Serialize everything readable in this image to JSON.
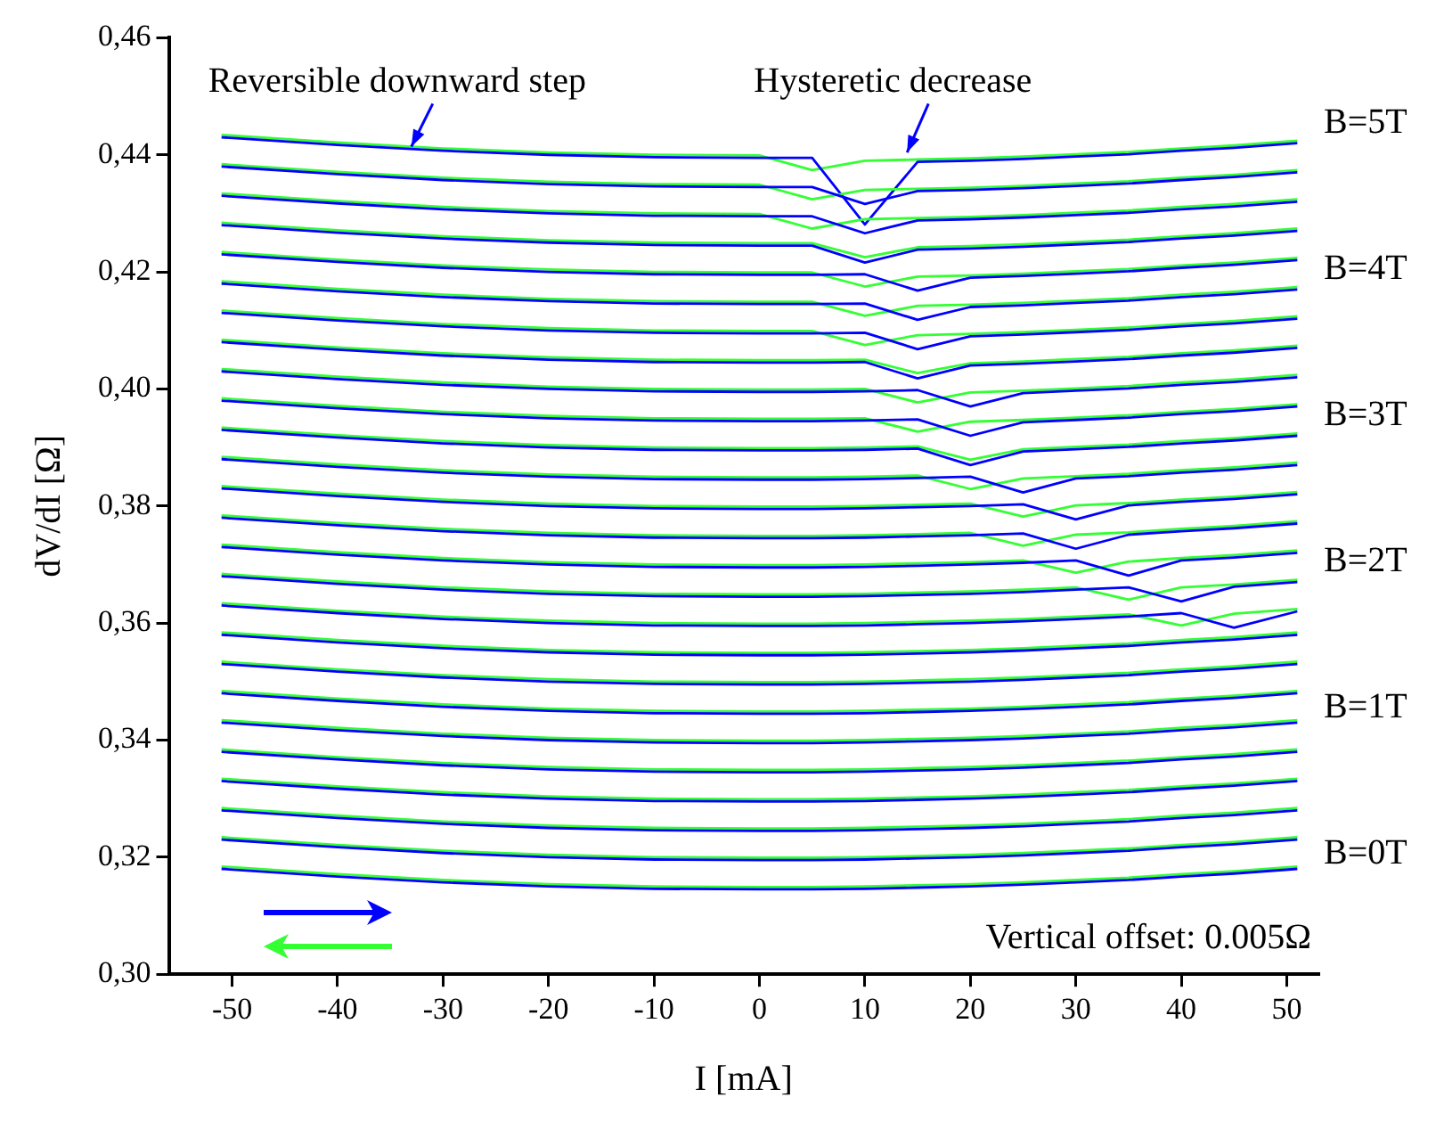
{
  "chart_data": {
    "type": "line",
    "xlabel": "I [mA]",
    "ylabel": "dV/dI [Ω]",
    "x": [
      -51,
      -40,
      -30,
      -20,
      -10,
      0,
      5,
      10,
      15,
      20,
      25,
      30,
      35,
      40,
      45,
      51
    ],
    "xlim": [
      -56,
      53
    ],
    "xticks": [
      -50,
      -40,
      -30,
      -20,
      -10,
      0,
      10,
      20,
      30,
      40,
      50
    ],
    "ylim": [
      0.3,
      0.46
    ],
    "yticks": [
      {
        "value": 0.3,
        "label": "0,30"
      },
      {
        "value": 0.32,
        "label": "0,32"
      },
      {
        "value": 0.34,
        "label": "0,34"
      },
      {
        "value": 0.36,
        "label": "0,36"
      },
      {
        "value": 0.38,
        "label": "0,38"
      },
      {
        "value": 0.4,
        "label": "0,40"
      },
      {
        "value": 0.42,
        "label": "0,42"
      },
      {
        "value": 0.44,
        "label": "0,44"
      },
      {
        "value": 0.46,
        "label": "0,46"
      }
    ],
    "grid": false,
    "legend": false,
    "marker": "none",
    "line_style": "solid",
    "annotations": [
      {
        "text": "Reversible downward step",
        "x": -33,
        "y": 0.4405
      },
      {
        "text": "Hysteretic decrease",
        "x": 14,
        "y": 0.4395
      },
      {
        "text": "B=5T",
        "x": 51,
        "y": 0.443
      },
      {
        "text": "B=4T",
        "x": 51,
        "y": 0.418
      },
      {
        "text": "B=3T",
        "x": 51,
        "y": 0.393
      },
      {
        "text": "B=2T",
        "x": 51,
        "y": 0.368
      },
      {
        "text": "B=1T",
        "x": 51,
        "y": 0.343
      },
      {
        "text": "B=0T",
        "x": 51,
        "y": 0.318
      },
      "Vertical offset: 0.005Ω"
    ],
    "series": [
      {
        "color": "#0000ff",
        "values": [
          0.318,
          0.3167,
          0.3157,
          0.315,
          0.3146,
          0.3145,
          0.3145,
          0.3146,
          0.3148,
          0.315,
          0.3153,
          0.3157,
          0.3161,
          0.3167,
          0.3172,
          0.318
        ]
      },
      {
        "color": "#33ff33",
        "values": [
          0.3184,
          0.3171,
          0.3161,
          0.3154,
          0.315,
          0.3149,
          0.3149,
          0.315,
          0.3152,
          0.3154,
          0.3157,
          0.3161,
          0.3165,
          0.3171,
          0.3176,
          0.3184
        ]
      },
      {
        "color": "#0000ff",
        "values": [
          0.323,
          0.3217,
          0.3207,
          0.32,
          0.3196,
          0.3195,
          0.3195,
          0.3196,
          0.3198,
          0.32,
          0.3203,
          0.3207,
          0.3211,
          0.3217,
          0.3222,
          0.323
        ]
      },
      {
        "color": "#33ff33",
        "values": [
          0.3234,
          0.3221,
          0.3211,
          0.3204,
          0.32,
          0.3199,
          0.3199,
          0.32,
          0.3202,
          0.3204,
          0.3207,
          0.3211,
          0.3215,
          0.3221,
          0.3226,
          0.3234
        ]
      },
      {
        "color": "#0000ff",
        "values": [
          0.328,
          0.3267,
          0.3257,
          0.325,
          0.3246,
          0.3245,
          0.3245,
          0.3246,
          0.3248,
          0.325,
          0.3253,
          0.3257,
          0.3261,
          0.3267,
          0.3272,
          0.328
        ]
      },
      {
        "color": "#33ff33",
        "values": [
          0.3284,
          0.3271,
          0.3261,
          0.3254,
          0.325,
          0.3249,
          0.3249,
          0.325,
          0.3252,
          0.3254,
          0.3257,
          0.3261,
          0.3265,
          0.3271,
          0.3276,
          0.3284
        ]
      },
      {
        "color": "#0000ff",
        "values": [
          0.333,
          0.3317,
          0.3307,
          0.33,
          0.3296,
          0.3295,
          0.3295,
          0.3296,
          0.3298,
          0.33,
          0.3303,
          0.3307,
          0.3311,
          0.3317,
          0.3322,
          0.333
        ]
      },
      {
        "color": "#33ff33",
        "values": [
          0.3334,
          0.3321,
          0.3311,
          0.3304,
          0.33,
          0.3299,
          0.3299,
          0.33,
          0.3302,
          0.3304,
          0.3307,
          0.3311,
          0.3315,
          0.3321,
          0.3326,
          0.3334
        ]
      },
      {
        "color": "#0000ff",
        "values": [
          0.338,
          0.3367,
          0.3357,
          0.335,
          0.3346,
          0.3345,
          0.3345,
          0.3346,
          0.3348,
          0.335,
          0.3353,
          0.3357,
          0.3361,
          0.3367,
          0.3372,
          0.338
        ]
      },
      {
        "color": "#33ff33",
        "values": [
          0.3384,
          0.3371,
          0.3361,
          0.3354,
          0.335,
          0.3349,
          0.3349,
          0.335,
          0.3352,
          0.3354,
          0.3357,
          0.3361,
          0.3365,
          0.3371,
          0.3376,
          0.3384
        ]
      },
      {
        "color": "#0000ff",
        "values": [
          0.343,
          0.3417,
          0.3407,
          0.34,
          0.3396,
          0.3395,
          0.3395,
          0.3396,
          0.3398,
          0.34,
          0.3403,
          0.3407,
          0.3411,
          0.3417,
          0.3422,
          0.343
        ]
      },
      {
        "color": "#33ff33",
        "values": [
          0.3434,
          0.3421,
          0.3411,
          0.3404,
          0.34,
          0.3399,
          0.3399,
          0.34,
          0.3402,
          0.3404,
          0.3407,
          0.3411,
          0.3415,
          0.3421,
          0.3426,
          0.3434
        ]
      },
      {
        "color": "#0000ff",
        "values": [
          0.348,
          0.3467,
          0.3457,
          0.345,
          0.3446,
          0.3445,
          0.3445,
          0.3446,
          0.3448,
          0.345,
          0.3453,
          0.3457,
          0.3461,
          0.3467,
          0.3472,
          0.348
        ]
      },
      {
        "color": "#33ff33",
        "values": [
          0.3484,
          0.3471,
          0.3461,
          0.3454,
          0.345,
          0.3449,
          0.3449,
          0.345,
          0.3452,
          0.3454,
          0.3457,
          0.3461,
          0.3465,
          0.3471,
          0.3476,
          0.3484
        ]
      },
      {
        "color": "#0000ff",
        "values": [
          0.353,
          0.3517,
          0.3507,
          0.35,
          0.3496,
          0.3495,
          0.3495,
          0.3496,
          0.3498,
          0.35,
          0.3503,
          0.3507,
          0.3511,
          0.3517,
          0.3522,
          0.353
        ]
      },
      {
        "color": "#33ff33",
        "values": [
          0.3534,
          0.3521,
          0.3511,
          0.3504,
          0.35,
          0.3499,
          0.3499,
          0.35,
          0.3502,
          0.3504,
          0.3507,
          0.3511,
          0.3515,
          0.3521,
          0.3526,
          0.3534
        ]
      },
      {
        "color": "#0000ff",
        "values": [
          0.358,
          0.3567,
          0.3557,
          0.355,
          0.3546,
          0.3545,
          0.3545,
          0.3546,
          0.3548,
          0.355,
          0.3553,
          0.3557,
          0.3561,
          0.3567,
          0.3572,
          0.358
        ]
      },
      {
        "color": "#33ff33",
        "values": [
          0.3584,
          0.3571,
          0.3561,
          0.3554,
          0.355,
          0.3549,
          0.3549,
          0.355,
          0.3552,
          0.3554,
          0.3557,
          0.3561,
          0.3565,
          0.3571,
          0.3576,
          0.3584
        ]
      },
      {
        "color": "#0000ff",
        "values": [
          0.363,
          0.3617,
          0.3607,
          0.36,
          0.3596,
          0.3595,
          0.3595,
          0.3596,
          0.3598,
          0.36,
          0.3603,
          0.3607,
          0.3611,
          0.3617,
          0.3592,
          0.362
        ]
      },
      {
        "color": "#33ff33",
        "values": [
          0.3634,
          0.3621,
          0.3611,
          0.3604,
          0.36,
          0.3599,
          0.3599,
          0.36,
          0.3602,
          0.3604,
          0.3607,
          0.3611,
          0.3615,
          0.3596,
          0.3616,
          0.3624
        ]
      },
      {
        "color": "#0000ff",
        "values": [
          0.368,
          0.3667,
          0.3657,
          0.365,
          0.3646,
          0.3645,
          0.3645,
          0.3646,
          0.3648,
          0.365,
          0.3653,
          0.3657,
          0.3661,
          0.3637,
          0.3662,
          0.367
        ]
      },
      {
        "color": "#33ff33",
        "values": [
          0.3684,
          0.3671,
          0.3661,
          0.3654,
          0.365,
          0.3649,
          0.3649,
          0.365,
          0.3652,
          0.3654,
          0.3657,
          0.3661,
          0.364,
          0.3661,
          0.3666,
          0.3674
        ]
      },
      {
        "color": "#0000ff",
        "values": [
          0.373,
          0.3717,
          0.3707,
          0.37,
          0.3696,
          0.3695,
          0.3695,
          0.3696,
          0.3698,
          0.37,
          0.3703,
          0.3707,
          0.3681,
          0.3707,
          0.3712,
          0.372
        ]
      },
      {
        "color": "#33ff33",
        "values": [
          0.3734,
          0.3721,
          0.3711,
          0.3704,
          0.37,
          0.3699,
          0.3699,
          0.37,
          0.3702,
          0.3704,
          0.3707,
          0.3686,
          0.3705,
          0.3711,
          0.3716,
          0.3724
        ]
      },
      {
        "color": "#0000ff",
        "values": [
          0.378,
          0.3767,
          0.3757,
          0.375,
          0.3746,
          0.3745,
          0.3745,
          0.3746,
          0.3748,
          0.375,
          0.3753,
          0.3727,
          0.3751,
          0.3757,
          0.3762,
          0.377
        ]
      },
      {
        "color": "#33ff33",
        "values": [
          0.3784,
          0.3771,
          0.3761,
          0.3754,
          0.375,
          0.3749,
          0.3749,
          0.375,
          0.3752,
          0.3754,
          0.3732,
          0.3751,
          0.3755,
          0.3761,
          0.3766,
          0.3774
        ]
      },
      {
        "color": "#0000ff",
        "values": [
          0.383,
          0.3817,
          0.3807,
          0.38,
          0.3796,
          0.3795,
          0.3795,
          0.3796,
          0.3798,
          0.38,
          0.3803,
          0.3777,
          0.3801,
          0.3807,
          0.3812,
          0.382
        ]
      },
      {
        "color": "#33ff33",
        "values": [
          0.3834,
          0.3821,
          0.3811,
          0.3804,
          0.38,
          0.3799,
          0.3799,
          0.38,
          0.3802,
          0.3804,
          0.3782,
          0.3801,
          0.3805,
          0.3811,
          0.3816,
          0.3824
        ]
      },
      {
        "color": "#0000ff",
        "values": [
          0.388,
          0.3867,
          0.3857,
          0.385,
          0.3846,
          0.3845,
          0.3845,
          0.3846,
          0.3848,
          0.385,
          0.3823,
          0.3847,
          0.3851,
          0.3857,
          0.3862,
          0.387
        ]
      },
      {
        "color": "#33ff33",
        "values": [
          0.3884,
          0.3871,
          0.3861,
          0.3854,
          0.385,
          0.3849,
          0.3849,
          0.385,
          0.3852,
          0.3829,
          0.3847,
          0.3851,
          0.3855,
          0.3861,
          0.3866,
          0.3874
        ]
      },
      {
        "color": "#0000ff",
        "values": [
          0.393,
          0.3917,
          0.3907,
          0.39,
          0.3896,
          0.3895,
          0.3895,
          0.3896,
          0.3898,
          0.387,
          0.3893,
          0.3897,
          0.3901,
          0.3907,
          0.3912,
          0.392
        ]
      },
      {
        "color": "#33ff33",
        "values": [
          0.3934,
          0.3921,
          0.3911,
          0.3904,
          0.39,
          0.3899,
          0.3899,
          0.39,
          0.3902,
          0.3879,
          0.3897,
          0.3901,
          0.3905,
          0.3911,
          0.3916,
          0.3924
        ]
      },
      {
        "color": "#0000ff",
        "values": [
          0.398,
          0.3967,
          0.3957,
          0.395,
          0.3946,
          0.3945,
          0.3945,
          0.3946,
          0.3948,
          0.392,
          0.3943,
          0.3947,
          0.3951,
          0.3957,
          0.3962,
          0.397
        ]
      },
      {
        "color": "#33ff33",
        "values": [
          0.3984,
          0.3971,
          0.3961,
          0.3954,
          0.395,
          0.3949,
          0.3949,
          0.395,
          0.3927,
          0.3944,
          0.3947,
          0.3951,
          0.3955,
          0.3961,
          0.3966,
          0.3974
        ]
      },
      {
        "color": "#0000ff",
        "values": [
          0.403,
          0.4017,
          0.4007,
          0.4,
          0.3996,
          0.3995,
          0.3995,
          0.3996,
          0.3998,
          0.397,
          0.3993,
          0.3997,
          0.4001,
          0.4007,
          0.4012,
          0.402
        ]
      },
      {
        "color": "#33ff33",
        "values": [
          0.4034,
          0.4021,
          0.4011,
          0.4004,
          0.4,
          0.3999,
          0.3999,
          0.4,
          0.3977,
          0.3994,
          0.3997,
          0.4001,
          0.4005,
          0.4011,
          0.4016,
          0.4024
        ]
      },
      {
        "color": "#0000ff",
        "values": [
          0.408,
          0.4067,
          0.4057,
          0.405,
          0.4046,
          0.4045,
          0.4045,
          0.4046,
          0.4018,
          0.404,
          0.4043,
          0.4047,
          0.4051,
          0.4057,
          0.4062,
          0.407
        ]
      },
      {
        "color": "#33ff33",
        "values": [
          0.4084,
          0.4071,
          0.4061,
          0.4054,
          0.405,
          0.4049,
          0.4049,
          0.405,
          0.4027,
          0.4044,
          0.4047,
          0.4051,
          0.4055,
          0.4061,
          0.4066,
          0.4074
        ]
      },
      {
        "color": "#0000ff",
        "values": [
          0.413,
          0.4117,
          0.4107,
          0.41,
          0.4096,
          0.4095,
          0.4095,
          0.4096,
          0.4068,
          0.409,
          0.4093,
          0.4097,
          0.4101,
          0.4107,
          0.4112,
          0.412
        ]
      },
      {
        "color": "#33ff33",
        "values": [
          0.4134,
          0.4121,
          0.4111,
          0.4104,
          0.41,
          0.4099,
          0.4099,
          0.4075,
          0.4092,
          0.4094,
          0.4097,
          0.4101,
          0.4105,
          0.4111,
          0.4116,
          0.4124
        ]
      },
      {
        "color": "#0000ff",
        "values": [
          0.418,
          0.4167,
          0.4157,
          0.415,
          0.4146,
          0.4145,
          0.4145,
          0.4146,
          0.4118,
          0.414,
          0.4143,
          0.4147,
          0.4151,
          0.4157,
          0.4162,
          0.417
        ]
      },
      {
        "color": "#33ff33",
        "values": [
          0.4184,
          0.4171,
          0.4161,
          0.4154,
          0.415,
          0.4149,
          0.4149,
          0.4125,
          0.4142,
          0.4144,
          0.4147,
          0.4151,
          0.4155,
          0.4161,
          0.4166,
          0.4174
        ]
      },
      {
        "color": "#0000ff",
        "values": [
          0.423,
          0.4217,
          0.4207,
          0.42,
          0.4196,
          0.4195,
          0.4195,
          0.4196,
          0.4168,
          0.419,
          0.4193,
          0.4197,
          0.4201,
          0.4207,
          0.4212,
          0.422
        ]
      },
      {
        "color": "#33ff33",
        "values": [
          0.4234,
          0.4221,
          0.4211,
          0.4204,
          0.42,
          0.4199,
          0.4199,
          0.4175,
          0.4192,
          0.4194,
          0.4197,
          0.4201,
          0.4205,
          0.4211,
          0.4216,
          0.4224
        ]
      },
      {
        "color": "#0000ff",
        "values": [
          0.428,
          0.4267,
          0.4257,
          0.425,
          0.4246,
          0.4245,
          0.4245,
          0.4216,
          0.4238,
          0.424,
          0.4243,
          0.4247,
          0.4251,
          0.4257,
          0.4262,
          0.427
        ]
      },
      {
        "color": "#33ff33",
        "values": [
          0.4284,
          0.4271,
          0.4261,
          0.4254,
          0.425,
          0.4249,
          0.4249,
          0.4225,
          0.4242,
          0.4244,
          0.4247,
          0.4251,
          0.4255,
          0.4261,
          0.4266,
          0.4274
        ]
      },
      {
        "color": "#0000ff",
        "values": [
          0.433,
          0.4317,
          0.4307,
          0.43,
          0.4296,
          0.4295,
          0.4295,
          0.4266,
          0.4288,
          0.429,
          0.4293,
          0.4297,
          0.4301,
          0.4307,
          0.4312,
          0.432
        ]
      },
      {
        "color": "#33ff33",
        "values": [
          0.4334,
          0.4321,
          0.4311,
          0.4304,
          0.43,
          0.4299,
          0.4274,
          0.429,
          0.4292,
          0.4294,
          0.4297,
          0.4301,
          0.4305,
          0.4311,
          0.4316,
          0.4324
        ]
      },
      {
        "color": "#0000ff",
        "values": [
          0.438,
          0.4367,
          0.4357,
          0.435,
          0.4346,
          0.4345,
          0.4345,
          0.4316,
          0.4338,
          0.434,
          0.4343,
          0.4347,
          0.4351,
          0.4357,
          0.4362,
          0.437
        ]
      },
      {
        "color": "#33ff33",
        "values": [
          0.4384,
          0.4371,
          0.4361,
          0.4354,
          0.435,
          0.4349,
          0.4324,
          0.434,
          0.4342,
          0.4344,
          0.4347,
          0.4351,
          0.4355,
          0.4361,
          0.4366,
          0.4374
        ]
      },
      {
        "color": "#0000ff",
        "values": [
          0.443,
          0.4417,
          0.4407,
          0.44,
          0.4396,
          0.4395,
          0.4395,
          0.4281,
          0.4388,
          0.439,
          0.4393,
          0.4397,
          0.4401,
          0.4407,
          0.4412,
          0.442
        ]
      },
      {
        "color": "#33ff33",
        "values": [
          0.4434,
          0.4421,
          0.4411,
          0.4404,
          0.44,
          0.4399,
          0.4374,
          0.439,
          0.4392,
          0.4394,
          0.4397,
          0.4401,
          0.4405,
          0.4411,
          0.4416,
          0.4424
        ]
      }
    ]
  }
}
